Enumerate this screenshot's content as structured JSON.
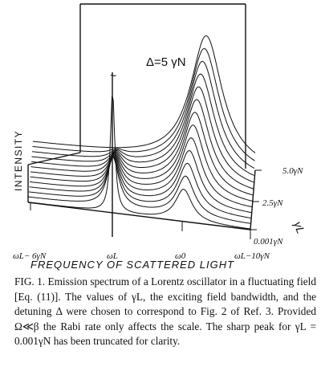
{
  "figure": {
    "annotation": "Δ=5 γN",
    "y_axis_label": "INTENSITY",
    "x_axis_label": "FREQUENCY OF SCATTERED LIGHT",
    "depth_axis_label": "γL",
    "x_ticks": [
      "ωL− 6γN",
      "ωL",
      "ω0",
      "ωL−10γN"
    ],
    "depth_ticks": [
      "5.0γN",
      "2.5γN",
      "0.001γN"
    ],
    "truncated_peak_mark": "~"
  },
  "caption": {
    "label": "FIG. 1.",
    "text": "Emission spectrum of a Lorentz oscillator in a fluctuating field [Eq. (11)]. The values of γL, the exciting field bandwidth, and the detuning Δ were chosen to correspond to Fig. 2 of Ref. 3. Provided Ω≪β the Rabi rate only affects the scale. The sharp peak for γL = 0.001γN has been truncated for clarity."
  }
}
